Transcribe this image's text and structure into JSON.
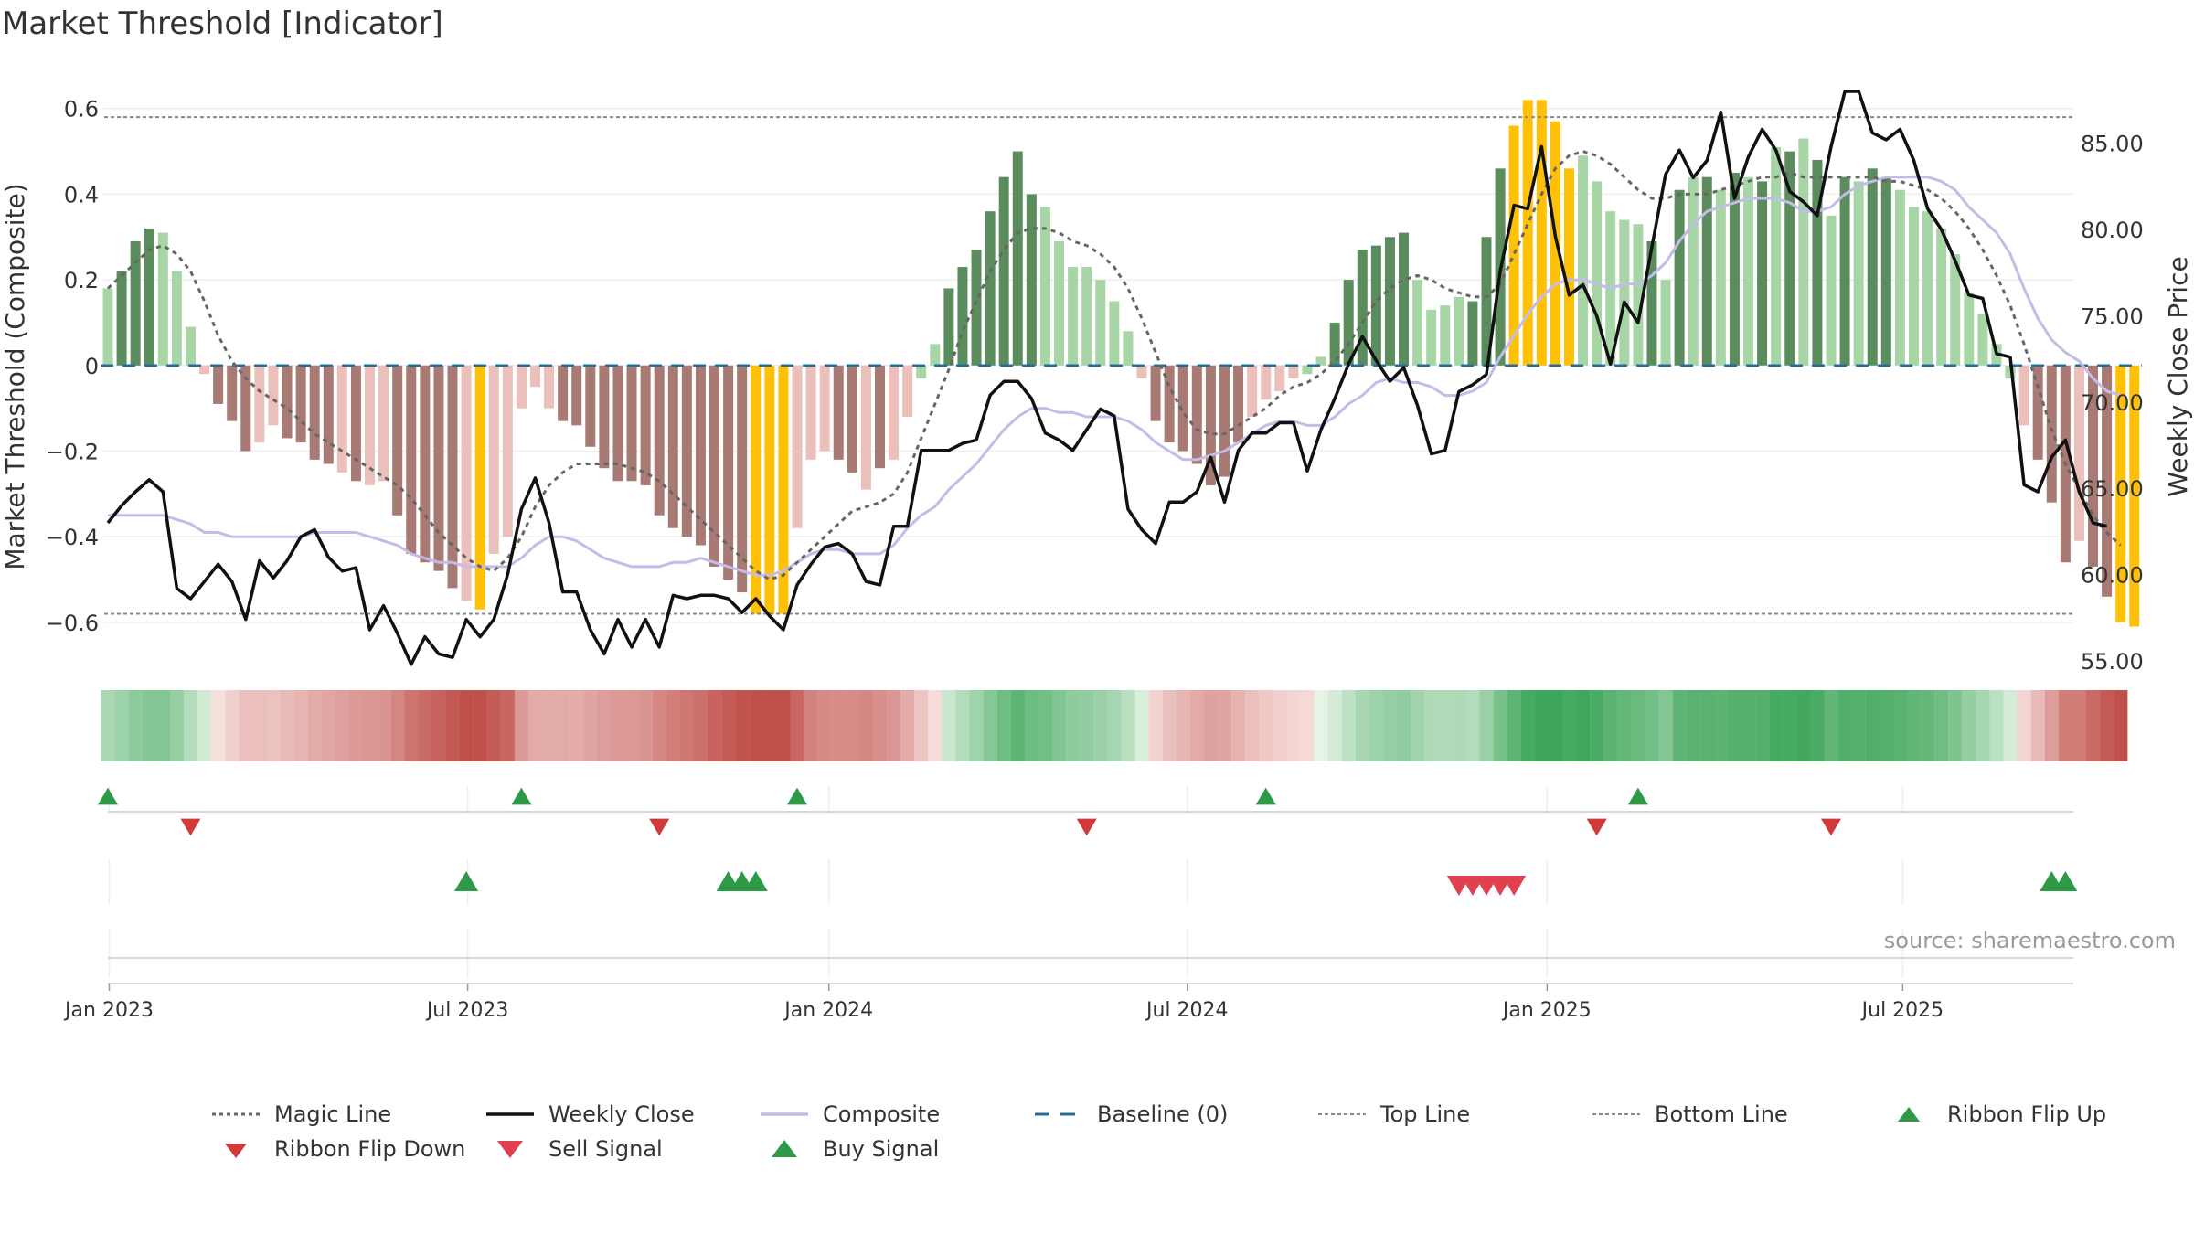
{
  "title": "Market Threshold [Indicator]",
  "source": "source: sharemaestro.com",
  "colors": {
    "pos_dark": "#5b8c5e",
    "pos_light": "#a8d5a6",
    "neg_dark": "#a87a74",
    "neg_light": "#ebbfba",
    "extreme": "#ffc107",
    "close": "#111111",
    "composite": "#c4bce8",
    "magic": "#666666",
    "baseline": "#1f6f9f",
    "threshold": "#888888",
    "up": "#2e9a47",
    "down": "#d23a3a",
    "sell": "#e04050"
  },
  "chart_data": {
    "type": "bar",
    "title": "Market Threshold [Indicator]",
    "ylabel": "Market Threshold (Composite)",
    "y2label": "Weekly Close Price",
    "ylim": [
      -0.69,
      0.64
    ],
    "y2lim": [
      55,
      88
    ],
    "yticks": [
      -0.6,
      -0.4,
      -0.2,
      0,
      0.2,
      0.4,
      0.6
    ],
    "ytick_labels": [
      "−0.6",
      "−0.4",
      "−0.2",
      "0",
      "0.2",
      "0.4",
      "0.6"
    ],
    "y2ticks": [
      55,
      60,
      65,
      70,
      75,
      80,
      85
    ],
    "y2tick_labels": [
      "55.00",
      "60.00",
      "65.00",
      "70.00",
      "75.00",
      "80.00",
      "85.00"
    ],
    "xtick_labels": [
      "Jan 2023",
      "Jul 2023",
      "Jan 2024",
      "Jul 2024",
      "Jan 2025",
      "Jul 2025"
    ],
    "xtick_weeks": [
      1.1,
      27.1,
      53.3,
      79.3,
      105.4,
      131.2
    ],
    "top_line": 0.58,
    "bottom_line": -0.58,
    "baseline": 0,
    "bars": [
      0.18,
      0.22,
      0.29,
      0.32,
      0.31,
      0.22,
      0.09,
      -0.02,
      -0.09,
      -0.13,
      -0.2,
      -0.18,
      -0.14,
      -0.17,
      -0.18,
      -0.22,
      -0.23,
      -0.25,
      -0.27,
      -0.28,
      -0.27,
      -0.35,
      -0.44,
      -0.46,
      -0.48,
      -0.52,
      -0.55,
      -0.57,
      -0.44,
      -0.4,
      -0.1,
      -0.05,
      -0.1,
      -0.13,
      -0.14,
      -0.19,
      -0.24,
      -0.27,
      -0.27,
      -0.28,
      -0.35,
      -0.38,
      -0.4,
      -0.42,
      -0.47,
      -0.5,
      -0.53,
      -0.58,
      -0.58,
      -0.58,
      -0.38,
      -0.22,
      -0.2,
      -0.22,
      -0.25,
      -0.29,
      -0.24,
      -0.22,
      -0.12,
      -0.03,
      0.05,
      0.18,
      0.23,
      0.27,
      0.36,
      0.44,
      0.5,
      0.4,
      0.37,
      0.29,
      0.23,
      0.23,
      0.2,
      0.15,
      0.08,
      -0.03,
      -0.13,
      -0.18,
      -0.2,
      -0.23,
      -0.28,
      -0.26,
      -0.18,
      -0.12,
      -0.08,
      -0.06,
      -0.03,
      -0.02,
      0.02,
      0.1,
      0.2,
      0.27,
      0.28,
      0.3,
      0.31,
      0.2,
      0.13,
      0.14,
      0.16,
      0.15,
      0.3,
      0.46,
      0.56,
      0.62,
      0.62,
      0.57,
      0.46,
      0.49,
      0.43,
      0.36,
      0.34,
      0.33,
      0.29,
      0.2,
      0.41,
      0.44,
      0.44,
      0.41,
      0.45,
      0.44,
      0.43,
      0.51,
      0.5,
      0.53,
      0.48,
      0.35,
      0.44,
      0.43,
      0.46,
      0.44,
      0.41,
      0.37,
      0.36,
      0.32,
      0.26,
      0.17,
      0.12,
      0.05,
      -0.03,
      -0.14,
      -0.22,
      -0.32,
      -0.46,
      -0.41,
      -0.47,
      -0.54,
      -0.6,
      -0.61
    ],
    "bar_colors": [
      "pos_light",
      "pos_dark",
      "pos_dark",
      "pos_dark",
      "pos_light",
      "pos_light",
      "pos_light",
      "neg_light",
      "neg_dark",
      "neg_dark",
      "neg_dark",
      "neg_light",
      "neg_light",
      "neg_dark",
      "neg_dark",
      "neg_dark",
      "neg_dark",
      "neg_light",
      "neg_dark",
      "neg_light",
      "neg_light",
      "neg_dark",
      "neg_dark",
      "neg_dark",
      "neg_dark",
      "neg_dark",
      "neg_light",
      "extreme",
      "neg_light",
      "neg_light",
      "neg_light",
      "neg_light",
      "neg_light",
      "neg_dark",
      "neg_dark",
      "neg_dark",
      "neg_dark",
      "neg_dark",
      "neg_dark",
      "neg_dark",
      "neg_dark",
      "neg_dark",
      "neg_dark",
      "neg_dark",
      "neg_dark",
      "neg_dark",
      "neg_dark",
      "extreme",
      "extreme",
      "extreme",
      "neg_light",
      "neg_light",
      "neg_light",
      "neg_dark",
      "neg_dark",
      "neg_light",
      "neg_dark",
      "neg_light",
      "neg_light",
      "pos_light",
      "pos_light",
      "pos_dark",
      "pos_dark",
      "pos_dark",
      "pos_dark",
      "pos_dark",
      "pos_dark",
      "pos_dark",
      "pos_light",
      "pos_light",
      "pos_light",
      "pos_light",
      "pos_light",
      "pos_light",
      "pos_light",
      "neg_light",
      "neg_dark",
      "neg_dark",
      "neg_dark",
      "neg_dark",
      "neg_dark",
      "neg_dark",
      "neg_dark",
      "neg_light",
      "neg_light",
      "neg_light",
      "neg_light",
      "pos_light",
      "pos_light",
      "pos_dark",
      "pos_dark",
      "pos_dark",
      "pos_dark",
      "pos_dark",
      "pos_dark",
      "pos_light",
      "pos_light",
      "pos_light",
      "pos_light",
      "pos_dark",
      "pos_dark",
      "pos_dark",
      "extreme",
      "extreme",
      "extreme",
      "extreme",
      "extreme",
      "pos_light",
      "pos_light",
      "pos_light",
      "pos_light",
      "pos_light",
      "pos_dark",
      "pos_light",
      "pos_dark",
      "pos_light",
      "pos_dark",
      "pos_light",
      "pos_dark",
      "pos_light",
      "pos_dark",
      "pos_light",
      "pos_dark",
      "pos_light",
      "pos_dark",
      "pos_light",
      "pos_dark",
      "pos_light",
      "pos_dark",
      "pos_dark",
      "pos_light",
      "pos_light",
      "pos_light",
      "pos_light",
      "pos_light",
      "pos_light",
      "pos_light",
      "pos_light",
      "pos_light",
      "neg_light",
      "neg_dark",
      "neg_dark",
      "neg_dark",
      "neg_light",
      "neg_dark",
      "neg_dark",
      "extreme",
      "extreme"
    ],
    "series": [
      {
        "name": "Weekly Close",
        "axis": "right",
        "values": [
          63.0,
          64.0,
          64.8,
          65.5,
          64.8,
          59.2,
          58.6,
          59.6,
          60.6,
          59.6,
          57.4,
          60.8,
          59.8,
          60.8,
          62.2,
          62.6,
          61.0,
          60.2,
          60.4,
          56.8,
          58.2,
          56.6,
          54.8,
          56.4,
          55.4,
          55.2,
          57.4,
          56.4,
          57.4,
          60.0,
          63.8,
          65.6,
          63.0,
          59.0,
          59.0,
          56.8,
          55.4,
          57.4,
          55.8,
          57.4,
          55.8,
          58.8,
          58.6,
          58.8,
          58.8,
          58.6,
          57.8,
          58.6,
          57.6,
          56.8,
          59.4,
          60.6,
          61.6,
          61.8,
          61.2,
          59.6,
          59.4,
          62.8,
          62.8,
          67.2,
          67.2,
          67.2,
          67.6,
          67.8,
          70.4,
          71.2,
          71.2,
          70.2,
          68.2,
          67.8,
          67.2,
          68.4,
          69.6,
          69.2,
          63.8,
          62.6,
          61.8,
          64.2,
          64.2,
          64.8,
          66.8,
          64.2,
          67.2,
          68.2,
          68.2,
          68.8,
          68.8,
          66.0,
          68.4,
          70.2,
          72.2,
          73.8,
          72.4,
          71.2,
          72.0,
          69.8,
          67.0,
          67.2,
          70.6,
          71.0,
          71.6,
          77.6,
          81.4,
          81.2,
          84.8,
          79.6,
          76.2,
          76.8,
          75.0,
          72.2,
          75.8,
          74.6,
          79.0,
          83.2,
          84.6,
          83.0,
          84.0,
          86.8,
          81.8,
          84.2,
          85.8,
          84.6,
          82.2,
          81.6,
          80.8,
          84.8,
          88.0,
          88.0,
          85.6,
          85.2,
          85.8,
          84.0,
          81.2,
          80.0,
          78.2,
          76.2,
          76.0,
          72.8,
          72.6,
          65.2,
          64.8,
          66.8,
          67.8,
          64.8,
          63.0,
          62.8
        ]
      },
      {
        "name": "Composite",
        "axis": "left",
        "values": [
          -0.35,
          -0.35,
          -0.35,
          -0.35,
          -0.35,
          -0.36,
          -0.37,
          -0.39,
          -0.39,
          -0.4,
          -0.4,
          -0.4,
          -0.4,
          -0.4,
          -0.4,
          -0.39,
          -0.39,
          -0.39,
          -0.39,
          -0.4,
          -0.41,
          -0.42,
          -0.44,
          -0.45,
          -0.46,
          -0.46,
          -0.47,
          -0.47,
          -0.47,
          -0.47,
          -0.45,
          -0.42,
          -0.4,
          -0.4,
          -0.41,
          -0.43,
          -0.45,
          -0.46,
          -0.47,
          -0.47,
          -0.47,
          -0.46,
          -0.46,
          -0.45,
          -0.46,
          -0.47,
          -0.48,
          -0.49,
          -0.49,
          -0.48,
          -0.46,
          -0.44,
          -0.43,
          -0.43,
          -0.44,
          -0.44,
          -0.44,
          -0.42,
          -0.38,
          -0.35,
          -0.33,
          -0.29,
          -0.26,
          -0.23,
          -0.19,
          -0.15,
          -0.12,
          -0.1,
          -0.1,
          -0.11,
          -0.11,
          -0.12,
          -0.12,
          -0.12,
          -0.13,
          -0.15,
          -0.18,
          -0.2,
          -0.22,
          -0.22,
          -0.21,
          -0.2,
          -0.18,
          -0.16,
          -0.14,
          -0.13,
          -0.13,
          -0.14,
          -0.14,
          -0.12,
          -0.09,
          -0.07,
          -0.04,
          -0.03,
          -0.04,
          -0.04,
          -0.05,
          -0.07,
          -0.07,
          -0.06,
          -0.04,
          0.02,
          0.07,
          0.12,
          0.16,
          0.19,
          0.2,
          0.2,
          0.19,
          0.18,
          0.19,
          0.19,
          0.21,
          0.24,
          0.29,
          0.33,
          0.36,
          0.37,
          0.38,
          0.39,
          0.39,
          0.39,
          0.38,
          0.36,
          0.36,
          0.37,
          0.4,
          0.42,
          0.43,
          0.44,
          0.44,
          0.44,
          0.44,
          0.43,
          0.41,
          0.37,
          0.34,
          0.31,
          0.26,
          0.18,
          0.11,
          0.06,
          0.03,
          0.01,
          -0.03,
          -0.06,
          -0.07
        ]
      },
      {
        "name": "Magic Line",
        "axis": "left",
        "values": [
          0.18,
          0.21,
          0.24,
          0.27,
          0.28,
          0.26,
          0.22,
          0.15,
          0.07,
          0.01,
          -0.03,
          -0.06,
          -0.08,
          -0.1,
          -0.13,
          -0.16,
          -0.18,
          -0.2,
          -0.22,
          -0.24,
          -0.26,
          -0.28,
          -0.31,
          -0.35,
          -0.39,
          -0.42,
          -0.45,
          -0.47,
          -0.48,
          -0.45,
          -0.4,
          -0.33,
          -0.28,
          -0.25,
          -0.23,
          -0.23,
          -0.23,
          -0.23,
          -0.24,
          -0.25,
          -0.27,
          -0.3,
          -0.33,
          -0.36,
          -0.39,
          -0.42,
          -0.45,
          -0.48,
          -0.5,
          -0.49,
          -0.46,
          -0.43,
          -0.4,
          -0.37,
          -0.34,
          -0.33,
          -0.32,
          -0.3,
          -0.25,
          -0.17,
          -0.09,
          -0.01,
          0.08,
          0.15,
          0.22,
          0.27,
          0.31,
          0.32,
          0.32,
          0.31,
          0.29,
          0.28,
          0.26,
          0.23,
          0.18,
          0.11,
          0.03,
          -0.05,
          -0.11,
          -0.15,
          -0.16,
          -0.16,
          -0.14,
          -0.12,
          -0.1,
          -0.07,
          -0.05,
          -0.04,
          -0.02,
          0.01,
          0.05,
          0.1,
          0.15,
          0.18,
          0.2,
          0.21,
          0.2,
          0.18,
          0.17,
          0.16,
          0.16,
          0.19,
          0.26,
          0.33,
          0.4,
          0.46,
          0.49,
          0.5,
          0.49,
          0.47,
          0.44,
          0.41,
          0.39,
          0.39,
          0.4,
          0.4,
          0.4,
          0.41,
          0.42,
          0.43,
          0.44,
          0.44,
          0.45,
          0.44,
          0.44,
          0.44,
          0.44,
          0.44,
          0.44,
          0.43,
          0.43,
          0.42,
          0.41,
          0.39,
          0.36,
          0.32,
          0.27,
          0.21,
          0.14,
          0.05,
          -0.05,
          -0.15,
          -0.23,
          -0.29,
          -0.35,
          -0.39,
          -0.42
        ]
      }
    ],
    "signals": [
      {
        "name": "Ribbon Flip Up",
        "row": "ribbon",
        "weeks": [
          1,
          31,
          51,
          85,
          112
        ]
      },
      {
        "name": "Ribbon Flip Down",
        "row": "ribbon",
        "weeks": [
          7,
          41,
          72,
          109,
          126
        ]
      },
      {
        "name": "Buy Signal",
        "row": "signal",
        "weeks": [
          27,
          46,
          47,
          48,
          142,
          143
        ]
      },
      {
        "name": "Sell Signal",
        "row": "signal",
        "weeks": [
          99,
          100,
          101,
          102,
          103
        ]
      }
    ],
    "legend": [
      "Magic Line",
      "Weekly Close",
      "Composite",
      "Baseline (0)",
      "Top Line",
      "Bottom Line",
      "Ribbon Flip Up",
      "Ribbon Flip Down",
      "Sell Signal",
      "Buy Signal"
    ],
    "legend_position": "bottom"
  }
}
